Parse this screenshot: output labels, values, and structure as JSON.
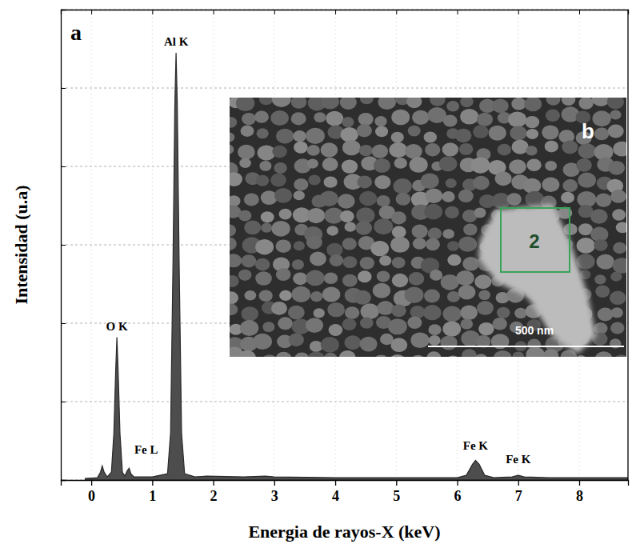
{
  "chart_data": {
    "type": "area",
    "title": "a",
    "x_label": "Energia de rayos-X (keV)",
    "y_label": "Intensidad (u.a)",
    "x": [
      -0.1,
      0.1,
      0.15,
      0.18,
      0.21,
      0.26,
      0.33,
      0.37,
      0.4,
      0.42,
      0.44,
      0.47,
      0.51,
      0.55,
      0.59,
      0.62,
      0.65,
      0.7,
      1.0,
      1.25,
      1.3,
      1.34,
      1.37,
      1.39,
      1.41,
      1.44,
      1.48,
      1.53,
      1.7,
      1.9,
      2.5,
      2.85,
      3.0,
      4.0,
      5.0,
      6.0,
      6.15,
      6.25,
      6.3,
      6.36,
      6.45,
      6.6,
      6.9,
      7.0,
      7.1,
      7.5,
      8.8
    ],
    "values": [
      0.02,
      0.03,
      0.1,
      0.18,
      0.1,
      0.04,
      0.1,
      0.6,
      1.4,
      1.82,
      1.4,
      0.6,
      0.1,
      0.05,
      0.12,
      0.15,
      0.08,
      0.04,
      0.04,
      0.08,
      0.6,
      2.8,
      4.8,
      5.45,
      4.8,
      2.8,
      0.6,
      0.08,
      0.04,
      0.05,
      0.04,
      0.05,
      0.04,
      0.03,
      0.03,
      0.03,
      0.06,
      0.2,
      0.25,
      0.2,
      0.06,
      0.03,
      0.04,
      0.06,
      0.04,
      0.03,
      0.03
    ],
    "color": "#4d4d4d",
    "xlim": [
      -0.5,
      8.8
    ],
    "xticks": [
      0,
      1,
      2,
      3,
      4,
      5,
      6,
      7,
      8
    ],
    "ylim": [
      0,
      6
    ],
    "yticks": [
      0,
      1,
      2,
      3,
      4,
      5,
      6
    ],
    "grid": true,
    "tick_labels": "x",
    "annotations": [
      {
        "text": "Al K",
        "x": 1.39,
        "y": 5.45
      },
      {
        "text": "O K",
        "x": 0.42,
        "y": 1.82
      },
      {
        "text": "Fe L",
        "x": 0.9,
        "y": 0.25
      },
      {
        "text": "Fe K",
        "x": 6.3,
        "y": 0.3
      },
      {
        "text": "Fe K",
        "x": 7.0,
        "y": 0.12
      }
    ]
  },
  "inset": {
    "label": "b",
    "region_label": "2",
    "scale_bar": "500 nm"
  }
}
